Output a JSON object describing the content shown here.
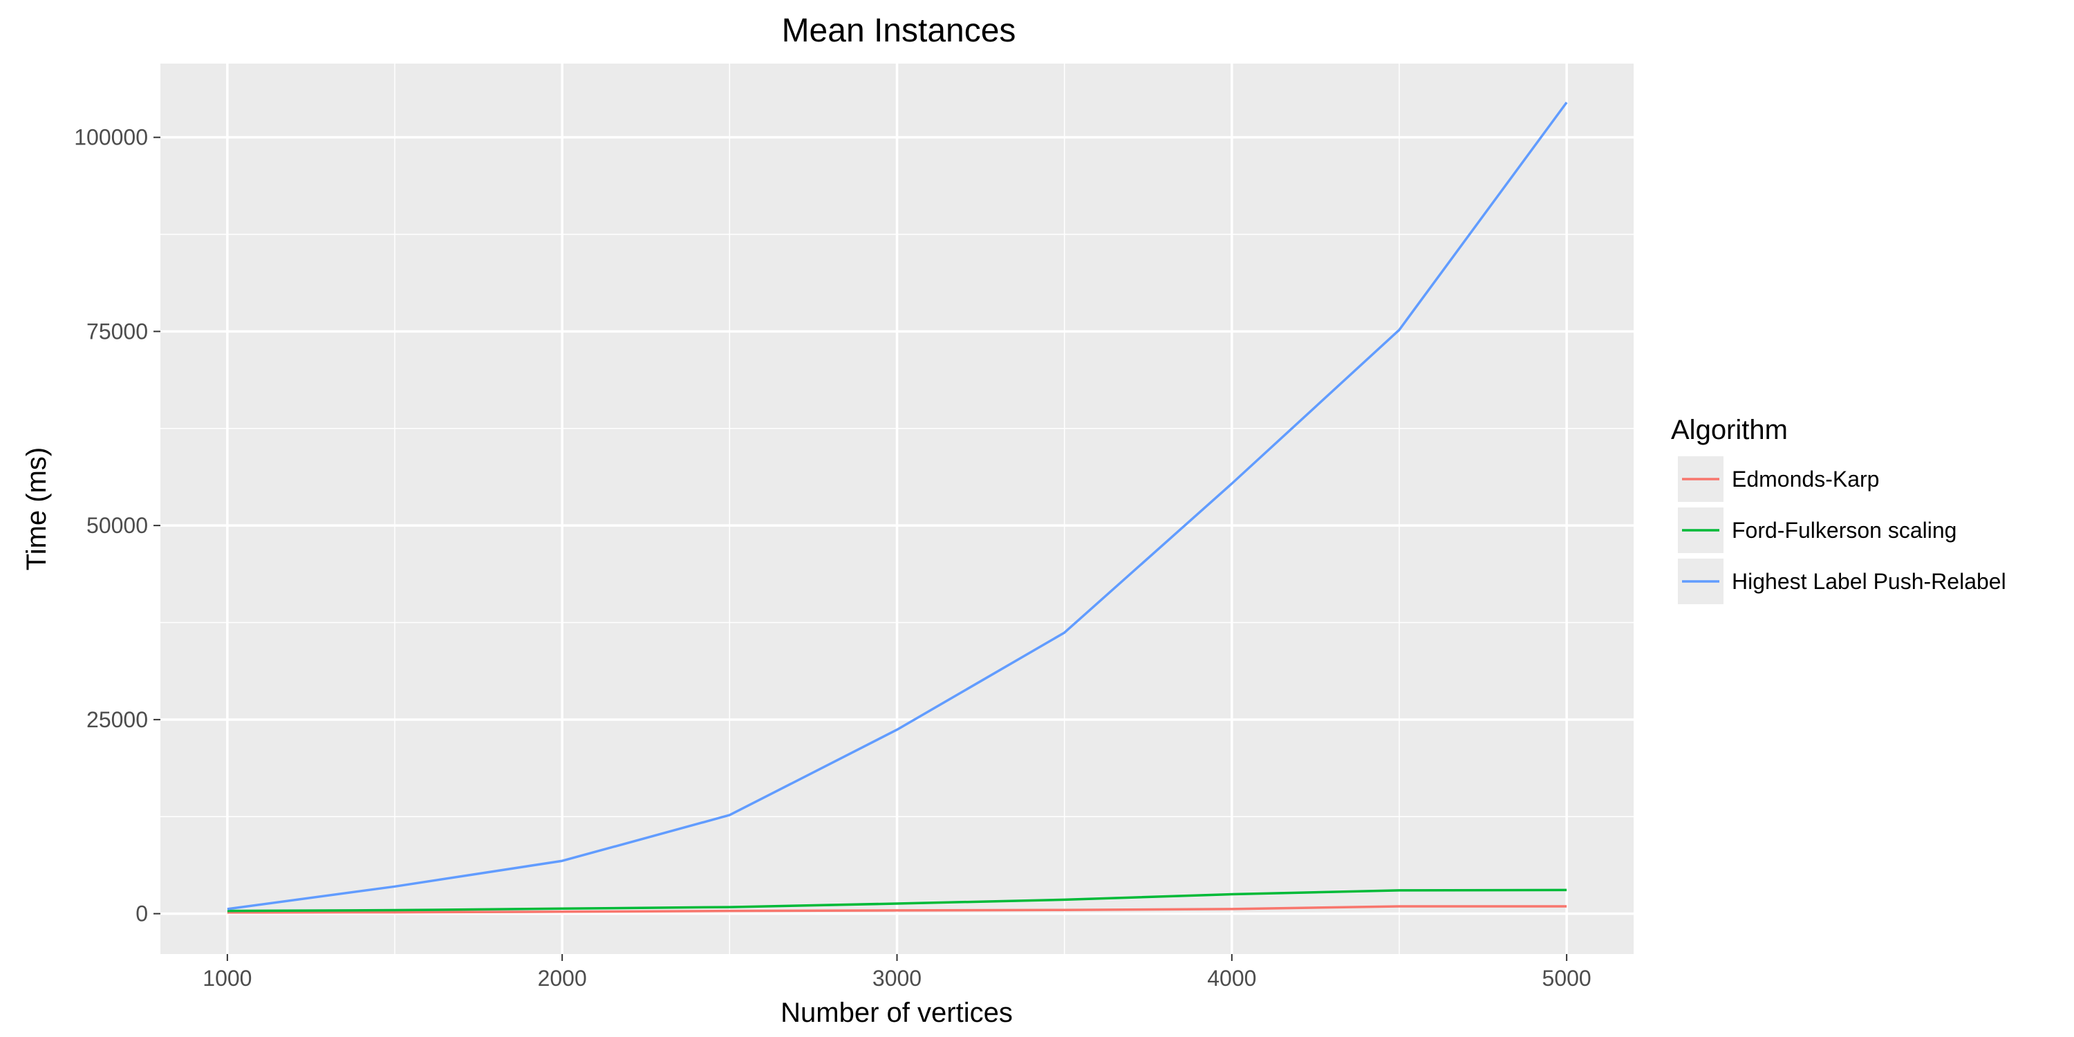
{
  "chart_data": {
    "type": "line",
    "title": "Mean Instances",
    "xlabel": "Number of vertices",
    "ylabel": "Time (ms)",
    "x": [
      1000,
      1500,
      2000,
      2500,
      3000,
      3500,
      4000,
      4500,
      5000
    ],
    "xticks": [
      1000,
      2000,
      3000,
      4000,
      5000
    ],
    "xlim": [
      800,
      5200
    ],
    "yticks": [
      0,
      25000,
      50000,
      75000,
      100000
    ],
    "ylim": [
      -5200,
      109500
    ],
    "grid": true,
    "background": "#ebebeb",
    "legend": {
      "title": "Algorithm",
      "position": "right"
    },
    "series": [
      {
        "name": "Edmonds-Karp",
        "color": "#f8766d",
        "values": [
          150,
          180,
          250,
          350,
          420,
          480,
          600,
          950,
          950
        ]
      },
      {
        "name": "Ford-Fulkerson scaling",
        "color": "#00ba38",
        "values": [
          350,
          450,
          650,
          850,
          1300,
          1800,
          2500,
          3000,
          3050
        ]
      },
      {
        "name": "Highest Label Push-Relabel",
        "color": "#619cff",
        "values": [
          600,
          3500,
          6800,
          12700,
          23700,
          36200,
          55400,
          75200,
          104500
        ]
      }
    ]
  }
}
